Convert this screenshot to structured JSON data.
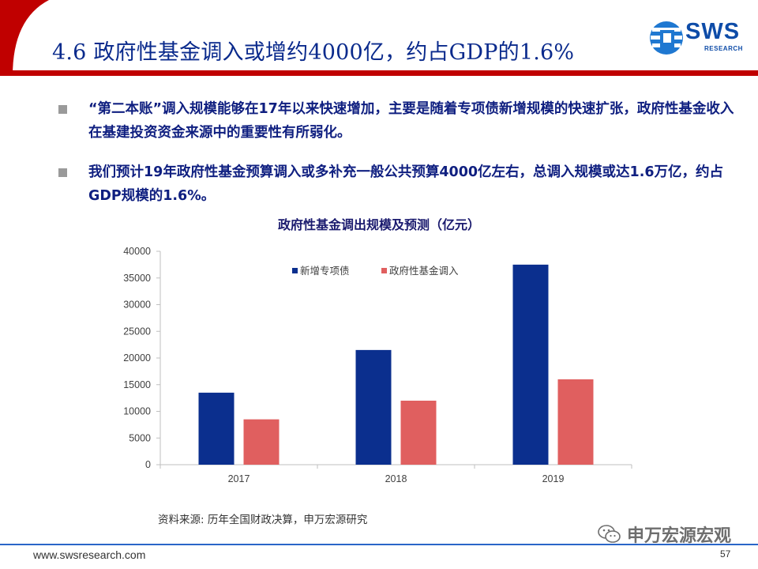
{
  "header": {
    "title": "4.6 政府性基金调入或增约4000亿，约占GDP的1.6%",
    "logo_text": "SWS",
    "logo_subtext": "RESEARCH"
  },
  "bullets": [
    "“第二本账”调入规模能够在17年以来快速增加，主要是随着专项债新增规模的快速扩张，政府性基金收入在基建投资资金来源中的重要性有所弱化。",
    "我们预计19年政府性基金预算调入或多补充一般公共预算4000亿左右，总调入规模或达1.6万亿，约占GDP规模的1.6%。"
  ],
  "chart_data": {
    "type": "bar",
    "title": "政府性基金调出规模及预测（亿元）",
    "categories": [
      "2017",
      "2018",
      "2019"
    ],
    "series": [
      {
        "name": "新增专项债",
        "values": [
          13500,
          21500,
          37500
        ],
        "color": "#0b2f8e"
      },
      {
        "name": "政府性基金调入",
        "values": [
          8500,
          12000,
          16000
        ],
        "color": "#e05f5f"
      }
    ],
    "ylim": [
      0,
      40000
    ],
    "yticks": [
      0,
      5000,
      10000,
      15000,
      20000,
      25000,
      30000,
      35000,
      40000
    ],
    "xlabel": "",
    "ylabel": "",
    "legend_position": "top-left",
    "grid": false
  },
  "source_note": "资料来源: 历年全国财政决算，申万宏源研究",
  "footer": {
    "url": "www.swsresearch.com",
    "page_number": "57",
    "watermark": "申万宏源宏观"
  },
  "colors": {
    "title": "#0a2a8c",
    "accent_red": "#c00000",
    "footer_line": "#2a66c8",
    "bullet_text": "#0f1f80"
  }
}
